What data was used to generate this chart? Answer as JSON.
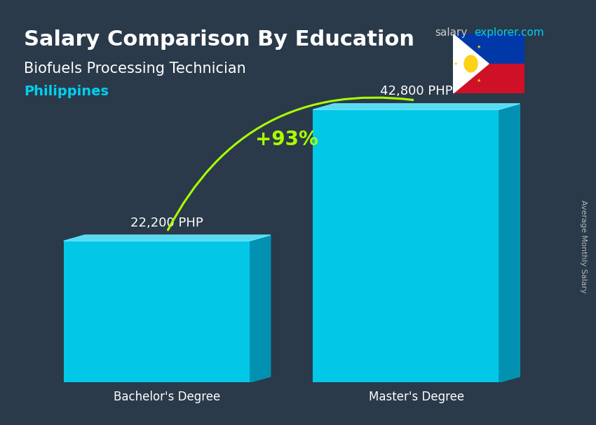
{
  "title_main": "Salary Comparison By Education",
  "subtitle": "Biofuels Processing Technician",
  "country": "Philippines",
  "site_name": "salary",
  "site_name2": "explorer.com",
  "categories": [
    "Bachelor's Degree",
    "Master's Degree"
  ],
  "values": [
    22200,
    42800
  ],
  "value_labels": [
    "22,200 PHP",
    "42,800 PHP"
  ],
  "bar_color": "#00d4f5",
  "bar_color_face": "#00cfee",
  "bar_color_top": "#60e8ff",
  "bar_color_side": "#0099bb",
  "pct_change": "+93%",
  "pct_color": "#aaff00",
  "ylabel": "Average Monthly Salary",
  "background_color": "#2a3a4a",
  "title_color": "#ffffff",
  "subtitle_color": "#ffffff",
  "country_color": "#00cfee",
  "category_color": "#ffffff",
  "value_label_color": "#ffffff",
  "bar_width": 0.35,
  "ylim": [
    0,
    52000
  ],
  "figsize": [
    8.5,
    6.06
  ],
  "dpi": 100
}
